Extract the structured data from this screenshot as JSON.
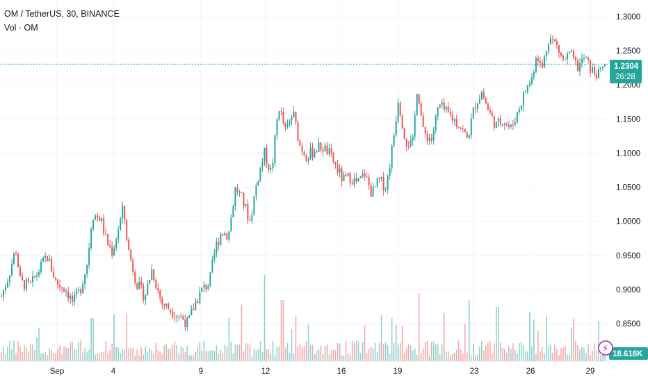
{
  "legend": {
    "symbol_line": "OM / TetherUS, 30, BINANCE",
    "volume_line": "Vol · OM"
  },
  "price_tag": {
    "value": "1.2304",
    "countdown": "26:28"
  },
  "volume_tag": {
    "value": "18.618K"
  },
  "colors": {
    "up": "#26a69a",
    "down": "#ef5350",
    "grid": "#f0f3fa",
    "price_line": "#26a69a",
    "vol_badge": "#9c27b0"
  },
  "chart_data": {
    "type": "candlestick",
    "y_axis": {
      "ticks": [
        "0.8500",
        "0.9000",
        "0.9500",
        "1.0000",
        "1.0500",
        "1.1000",
        "1.1500",
        "1.2000",
        "1.2500",
        "1.3000"
      ],
      "range": [
        0.8,
        1.3
      ]
    },
    "x_axis": {
      "ticks": [
        "Sep",
        "4",
        "9",
        "12",
        "16",
        "19",
        "23",
        "26",
        "29"
      ]
    },
    "price_path": [
      {
        "t": 0,
        "p": 0.89
      },
      {
        "t": 0.6,
        "p": 0.92
      },
      {
        "t": 1.2,
        "p": 0.96
      },
      {
        "t": 1.6,
        "p": 0.91
      },
      {
        "t": 2.4,
        "p": 0.905
      },
      {
        "t": 3.2,
        "p": 0.93
      },
      {
        "t": 3.8,
        "p": 0.95
      },
      {
        "t": 4.6,
        "p": 0.91
      },
      {
        "t": 5.4,
        "p": 0.9
      },
      {
        "t": 6.0,
        "p": 0.88
      },
      {
        "t": 6.6,
        "p": 0.9
      },
      {
        "t": 7.2,
        "p": 0.94
      },
      {
        "t": 7.6,
        "p": 1.01
      },
      {
        "t": 8.3,
        "p": 1.005
      },
      {
        "t": 8.8,
        "p": 0.97
      },
      {
        "t": 9.3,
        "p": 0.955
      },
      {
        "t": 9.8,
        "p": 0.99
      },
      {
        "t": 10.2,
        "p": 1.02
      },
      {
        "t": 10.6,
        "p": 0.96
      },
      {
        "t": 11.3,
        "p": 0.91
      },
      {
        "t": 12.0,
        "p": 0.89
      },
      {
        "t": 12.6,
        "p": 0.93
      },
      {
        "t": 13.4,
        "p": 0.88
      },
      {
        "t": 14.2,
        "p": 0.87
      },
      {
        "t": 15.0,
        "p": 0.86
      },
      {
        "t": 15.6,
        "p": 0.85
      },
      {
        "t": 16.2,
        "p": 0.88
      },
      {
        "t": 16.8,
        "p": 0.9
      },
      {
        "t": 17.4,
        "p": 0.91
      },
      {
        "t": 17.9,
        "p": 0.96
      },
      {
        "t": 18.4,
        "p": 0.985
      },
      {
        "t": 19.0,
        "p": 0.98
      },
      {
        "t": 19.6,
        "p": 1.05
      },
      {
        "t": 20.2,
        "p": 1.03
      },
      {
        "t": 20.8,
        "p": 1.0
      },
      {
        "t": 21.4,
        "p": 1.06
      },
      {
        "t": 22.0,
        "p": 1.1
      },
      {
        "t": 22.6,
        "p": 1.07
      },
      {
        "t": 23.2,
        "p": 1.17
      },
      {
        "t": 23.8,
        "p": 1.13
      },
      {
        "t": 24.4,
        "p": 1.16
      },
      {
        "t": 25.0,
        "p": 1.11
      },
      {
        "t": 25.6,
        "p": 1.095
      },
      {
        "t": 26.2,
        "p": 1.105
      },
      {
        "t": 26.8,
        "p": 1.11
      },
      {
        "t": 27.4,
        "p": 1.1
      },
      {
        "t": 28.0,
        "p": 1.08
      },
      {
        "t": 28.6,
        "p": 1.06
      },
      {
        "t": 29.2,
        "p": 1.065
      },
      {
        "t": 29.8,
        "p": 1.055
      },
      {
        "t": 30.4,
        "p": 1.07
      },
      {
        "t": 31.0,
        "p": 1.04
      },
      {
        "t": 31.6,
        "p": 1.06
      },
      {
        "t": 32.2,
        "p": 1.05
      },
      {
        "t": 32.8,
        "p": 1.12
      },
      {
        "t": 33.2,
        "p": 1.18
      },
      {
        "t": 33.8,
        "p": 1.12
      },
      {
        "t": 34.4,
        "p": 1.11
      },
      {
        "t": 34.8,
        "p": 1.2
      },
      {
        "t": 35.3,
        "p": 1.13
      },
      {
        "t": 36.0,
        "p": 1.12
      },
      {
        "t": 36.6,
        "p": 1.17
      },
      {
        "t": 37.2,
        "p": 1.16
      },
      {
        "t": 37.8,
        "p": 1.15
      },
      {
        "t": 38.4,
        "p": 1.14
      },
      {
        "t": 39.0,
        "p": 1.12
      },
      {
        "t": 39.6,
        "p": 1.17
      },
      {
        "t": 40.2,
        "p": 1.19
      },
      {
        "t": 40.8,
        "p": 1.16
      },
      {
        "t": 41.4,
        "p": 1.14
      },
      {
        "t": 42.0,
        "p": 1.15
      },
      {
        "t": 42.6,
        "p": 1.135
      },
      {
        "t": 43.2,
        "p": 1.16
      },
      {
        "t": 43.8,
        "p": 1.19
      },
      {
        "t": 44.4,
        "p": 1.21
      },
      {
        "t": 44.8,
        "p": 1.25
      },
      {
        "t": 45.2,
        "p": 1.22
      },
      {
        "t": 45.8,
        "p": 1.27
      },
      {
        "t": 46.4,
        "p": 1.26
      },
      {
        "t": 47.0,
        "p": 1.235
      },
      {
        "t": 47.6,
        "p": 1.245
      },
      {
        "t": 48.2,
        "p": 1.225
      },
      {
        "t": 48.8,
        "p": 1.24
      },
      {
        "t": 49.4,
        "p": 1.22
      },
      {
        "t": 50.0,
        "p": 1.215
      },
      {
        "t": 50.5,
        "p": 1.2304
      }
    ]
  }
}
